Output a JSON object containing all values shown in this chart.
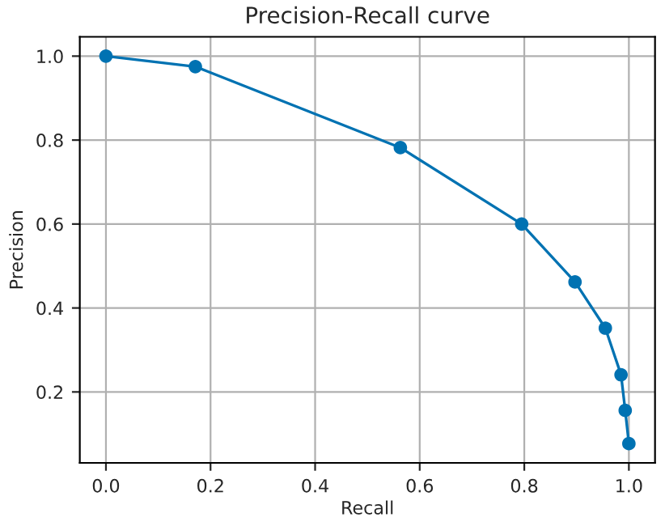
{
  "chart_data": {
    "type": "line",
    "title": "Precision-Recall curve",
    "xlabel": "Recall",
    "ylabel": "Precision",
    "x": [
      0.0,
      0.171,
      0.563,
      0.795,
      0.897,
      0.955,
      0.985,
      0.993,
      1.0
    ],
    "series": [
      {
        "color": "#0072b2",
        "values": [
          1.0,
          0.975,
          0.782,
          0.6,
          0.462,
          0.352,
          0.241,
          0.156,
          0.077
        ]
      }
    ],
    "xlim": [
      -0.05,
      1.05
    ],
    "ylim": [
      0.031,
      1.046
    ],
    "xticks": [
      {
        "value": 0,
        "label": "0.0"
      },
      0.2,
      0.4,
      0.6,
      0.8,
      {
        "value": 1,
        "label": "1.0"
      }
    ],
    "yticks": [
      0.2,
      0.4,
      0.6,
      0.8,
      {
        "value": 1,
        "label": "1.0"
      }
    ],
    "grid": true,
    "marker": "circle",
    "line_style": "solid"
  }
}
